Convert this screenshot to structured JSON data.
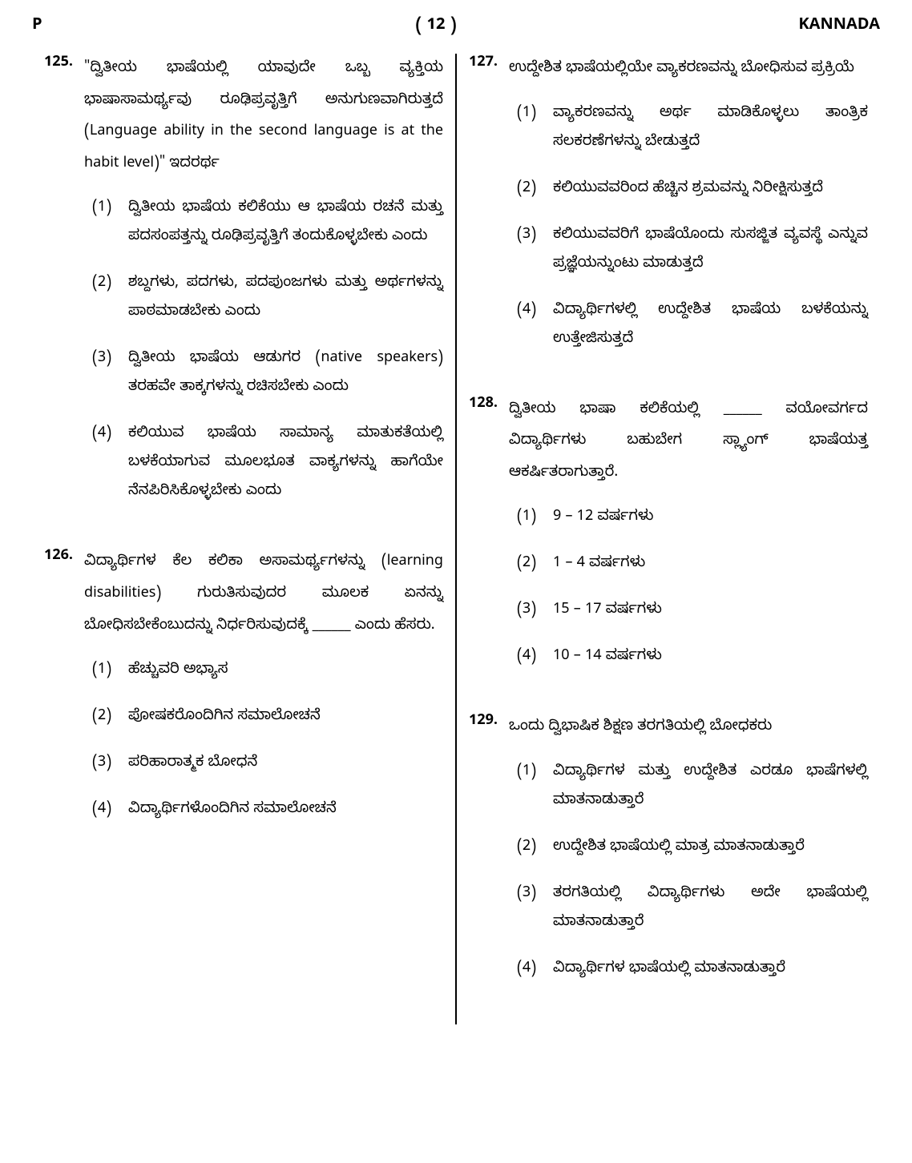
{
  "header": {
    "left": "P",
    "center": "( 12 )",
    "right": "KANNADA"
  },
  "leftColumn": {
    "questions": [
      {
        "number": "125.",
        "stem": "\"ದ್ವಿತೀಯ ಭಾಷೆಯಲ್ಲಿ ಯಾವುದೇ ಒಬ್ಬ ವ್ಯಕ್ತಿಯ ಭಾಷಾಸಾಮರ್ಥ್ಯವು ರೂಢಿಪ್ರವೃತ್ತಿಗೆ ಅನುಗುಣವಾಗಿರುತ್ತದೆ (Language ability in the second language is at the habit level)\" ಇದರರ್ಥ",
        "options": [
          {
            "num": "(1)",
            "text": "ದ್ವಿತೀಯ ಭಾಷೆಯ ಕಲಿಕೆಯು ಆ ಭಾಷೆಯ ರಚನೆ ಮತ್ತು ಪದಸಂಪತ್ತನ್ನು ರೂಢಿಪ್ರವೃತ್ತಿಗೆ ತಂದುಕೊಳ್ಳಬೇಕು ಎಂದು"
          },
          {
            "num": "(2)",
            "text": "ಶಬ್ದಗಳು, ಪದಗಳು, ಪದಪುಂಜಗಳು ಮತ್ತು ಅರ್ಥಗಳನ್ನು ಪಾಠಮಾಡಬೇಕು ಎಂದು"
          },
          {
            "num": "(3)",
            "text": "ದ್ವಿತೀಯ ಭಾಷೆಯ ಆಡುಗರ (native speakers) ತರಹವೇ ತಾಕ್ಕಗಳನ್ನು ರಚಿಸಬೇಕು ಎಂದು"
          },
          {
            "num": "(4)",
            "text": "ಕಲಿಯುವ ಭಾಷೆಯ ಸಾಮಾನ್ಯ ಮಾತುಕತೆಯಲ್ಲಿ ಬಳಕೆಯಾಗುವ ಮೂಲಭೂತ ವಾಕ್ಯಗಳನ್ನು ಹಾಗೆಯೇ ನೆನಪಿರಿಸಿಕೊಳ್ಳಬೇಕು ಎಂದು"
          }
        ]
      },
      {
        "number": "126.",
        "stem": "ವಿದ್ಯಾರ್ಥಿಗಳ ಕೆಲ ಕಲಿಕಾ ಅಸಾಮರ್ಥ್ಯಗಳನ್ನು (learning disabilities) ಗುರುತಿಸುವುದರ ಮೂಲಕ ಏನನ್ನು ಬೋಧಿಸಬೇಕೆಂಬುದನ್ನು ನಿರ್ಧರಿಸುವುದಕ್ಕೆ ______ ಎಂದು ಹೆಸರು.",
        "options": [
          {
            "num": "(1)",
            "text": "ಹೆಚ್ಚುವರಿ ಅಭ್ಯಾಸ"
          },
          {
            "num": "(2)",
            "text": "ಪೋಷಕರೊಂದಿಗಿನ ಸಮಾಲೋಚನೆ"
          },
          {
            "num": "(3)",
            "text": "ಪರಿಹಾರಾತ್ಮಕ ಬೋಧನೆ"
          },
          {
            "num": "(4)",
            "text": "ವಿದ್ಯಾರ್ಥಿಗಳೊಂದಿಗಿನ ಸಮಾಲೋಚನೆ"
          }
        ]
      }
    ]
  },
  "rightColumn": {
    "questions": [
      {
        "number": "127.",
        "stem": "ಉದ್ದೇಶಿತ ಭಾಷೆಯಲ್ಲಿಯೇ ವ್ಯಾಕರಣವನ್ನು ಬೋಧಿಸುವ ಪ್ರಕ್ರಿಯೆ",
        "options": [
          {
            "num": "(1)",
            "text": "ವ್ಯಾಕರಣವನ್ನು ಅರ್ಥ ಮಾಡಿಕೊಳ್ಳಲು ತಾಂತ್ರಿಕ ಸಲಕರಣೆಗಳನ್ನು ಬೇಡುತ್ತದೆ"
          },
          {
            "num": "(2)",
            "text": "ಕಲಿಯುವವರಿಂದ ಹೆಚ್ಚಿನ ಶ್ರಮವನ್ನು ನಿರೀಕ್ಷಿಸುತ್ತದೆ"
          },
          {
            "num": "(3)",
            "text": "ಕಲಿಯುವವರಿಗೆ ಭಾಷೆಯೊಂದು ಸುಸಜ್ಜಿತ ವ್ಯವಸ್ಥೆ ಎನ್ನುವ ಪ್ರಜ್ಞೆಯನ್ನುಂಟು ಮಾಡುತ್ತದೆ"
          },
          {
            "num": "(4)",
            "text": "ವಿದ್ಯಾರ್ಥಿಗಳಲ್ಲಿ ಉದ್ದೇಶಿತ ಭಾಷೆಯ ಬಳಕೆಯನ್ನು ಉತ್ತೇಜಿಸುತ್ತದೆ"
          }
        ]
      },
      {
        "number": "128.",
        "stem": "ದ್ವಿತೀಯ ಭಾಷಾ ಕಲಿಕೆಯಲ್ಲಿ ______ ವಯೋವರ್ಗದ ವಿದ್ಯಾರ್ಥಿಗಳು ಬಹುಬೇಗ ಸ್ಲ್ಯಾಂಗ್ ಭಾಷೆಯತ್ತ ಆಕರ್ಷಿತರಾಗುತ್ತಾರೆ.",
        "options": [
          {
            "num": "(1)",
            "text": "9 – 12 ವರ್ಷಗಳು"
          },
          {
            "num": "(2)",
            "text": "1 – 4 ವರ್ಷಗಳು"
          },
          {
            "num": "(3)",
            "text": "15 – 17 ವರ್ಷಗಳು"
          },
          {
            "num": "(4)",
            "text": "10 – 14 ವರ್ಷಗಳು"
          }
        ]
      },
      {
        "number": "129.",
        "stem": "ಒಂದು ದ್ವಿಭಾಷಿಕ ಶಿಕ್ಷಣ ತರಗತಿಯಲ್ಲಿ ಬೋಧಕರು",
        "options": [
          {
            "num": "(1)",
            "text": "ವಿದ್ಯಾರ್ಥಿಗಳ ಮತ್ತು ಉದ್ದೇಶಿತ ಎರಡೂ ಭಾಷೆಗಳಲ್ಲಿ ಮಾತನಾಡುತ್ತಾರೆ"
          },
          {
            "num": "(2)",
            "text": "ಉದ್ದೇಶಿತ ಭಾಷೆಯಲ್ಲಿ ಮಾತ್ರ ಮಾತನಾಡುತ್ತಾರೆ"
          },
          {
            "num": "(3)",
            "text": "ತರಗತಿಯಲ್ಲಿ ವಿದ್ಯಾರ್ಥಿಗಳು ಅದೇ ಭಾಷೆಯಲ್ಲಿ ಮಾತನಾಡುತ್ತಾರೆ"
          },
          {
            "num": "(4)",
            "text": "ವಿದ್ಯಾರ್ಥಿಗಳ ಭಾಷೆಯಲ್ಲಿ ಮಾತನಾಡುತ್ತಾರೆ"
          }
        ]
      }
    ]
  }
}
